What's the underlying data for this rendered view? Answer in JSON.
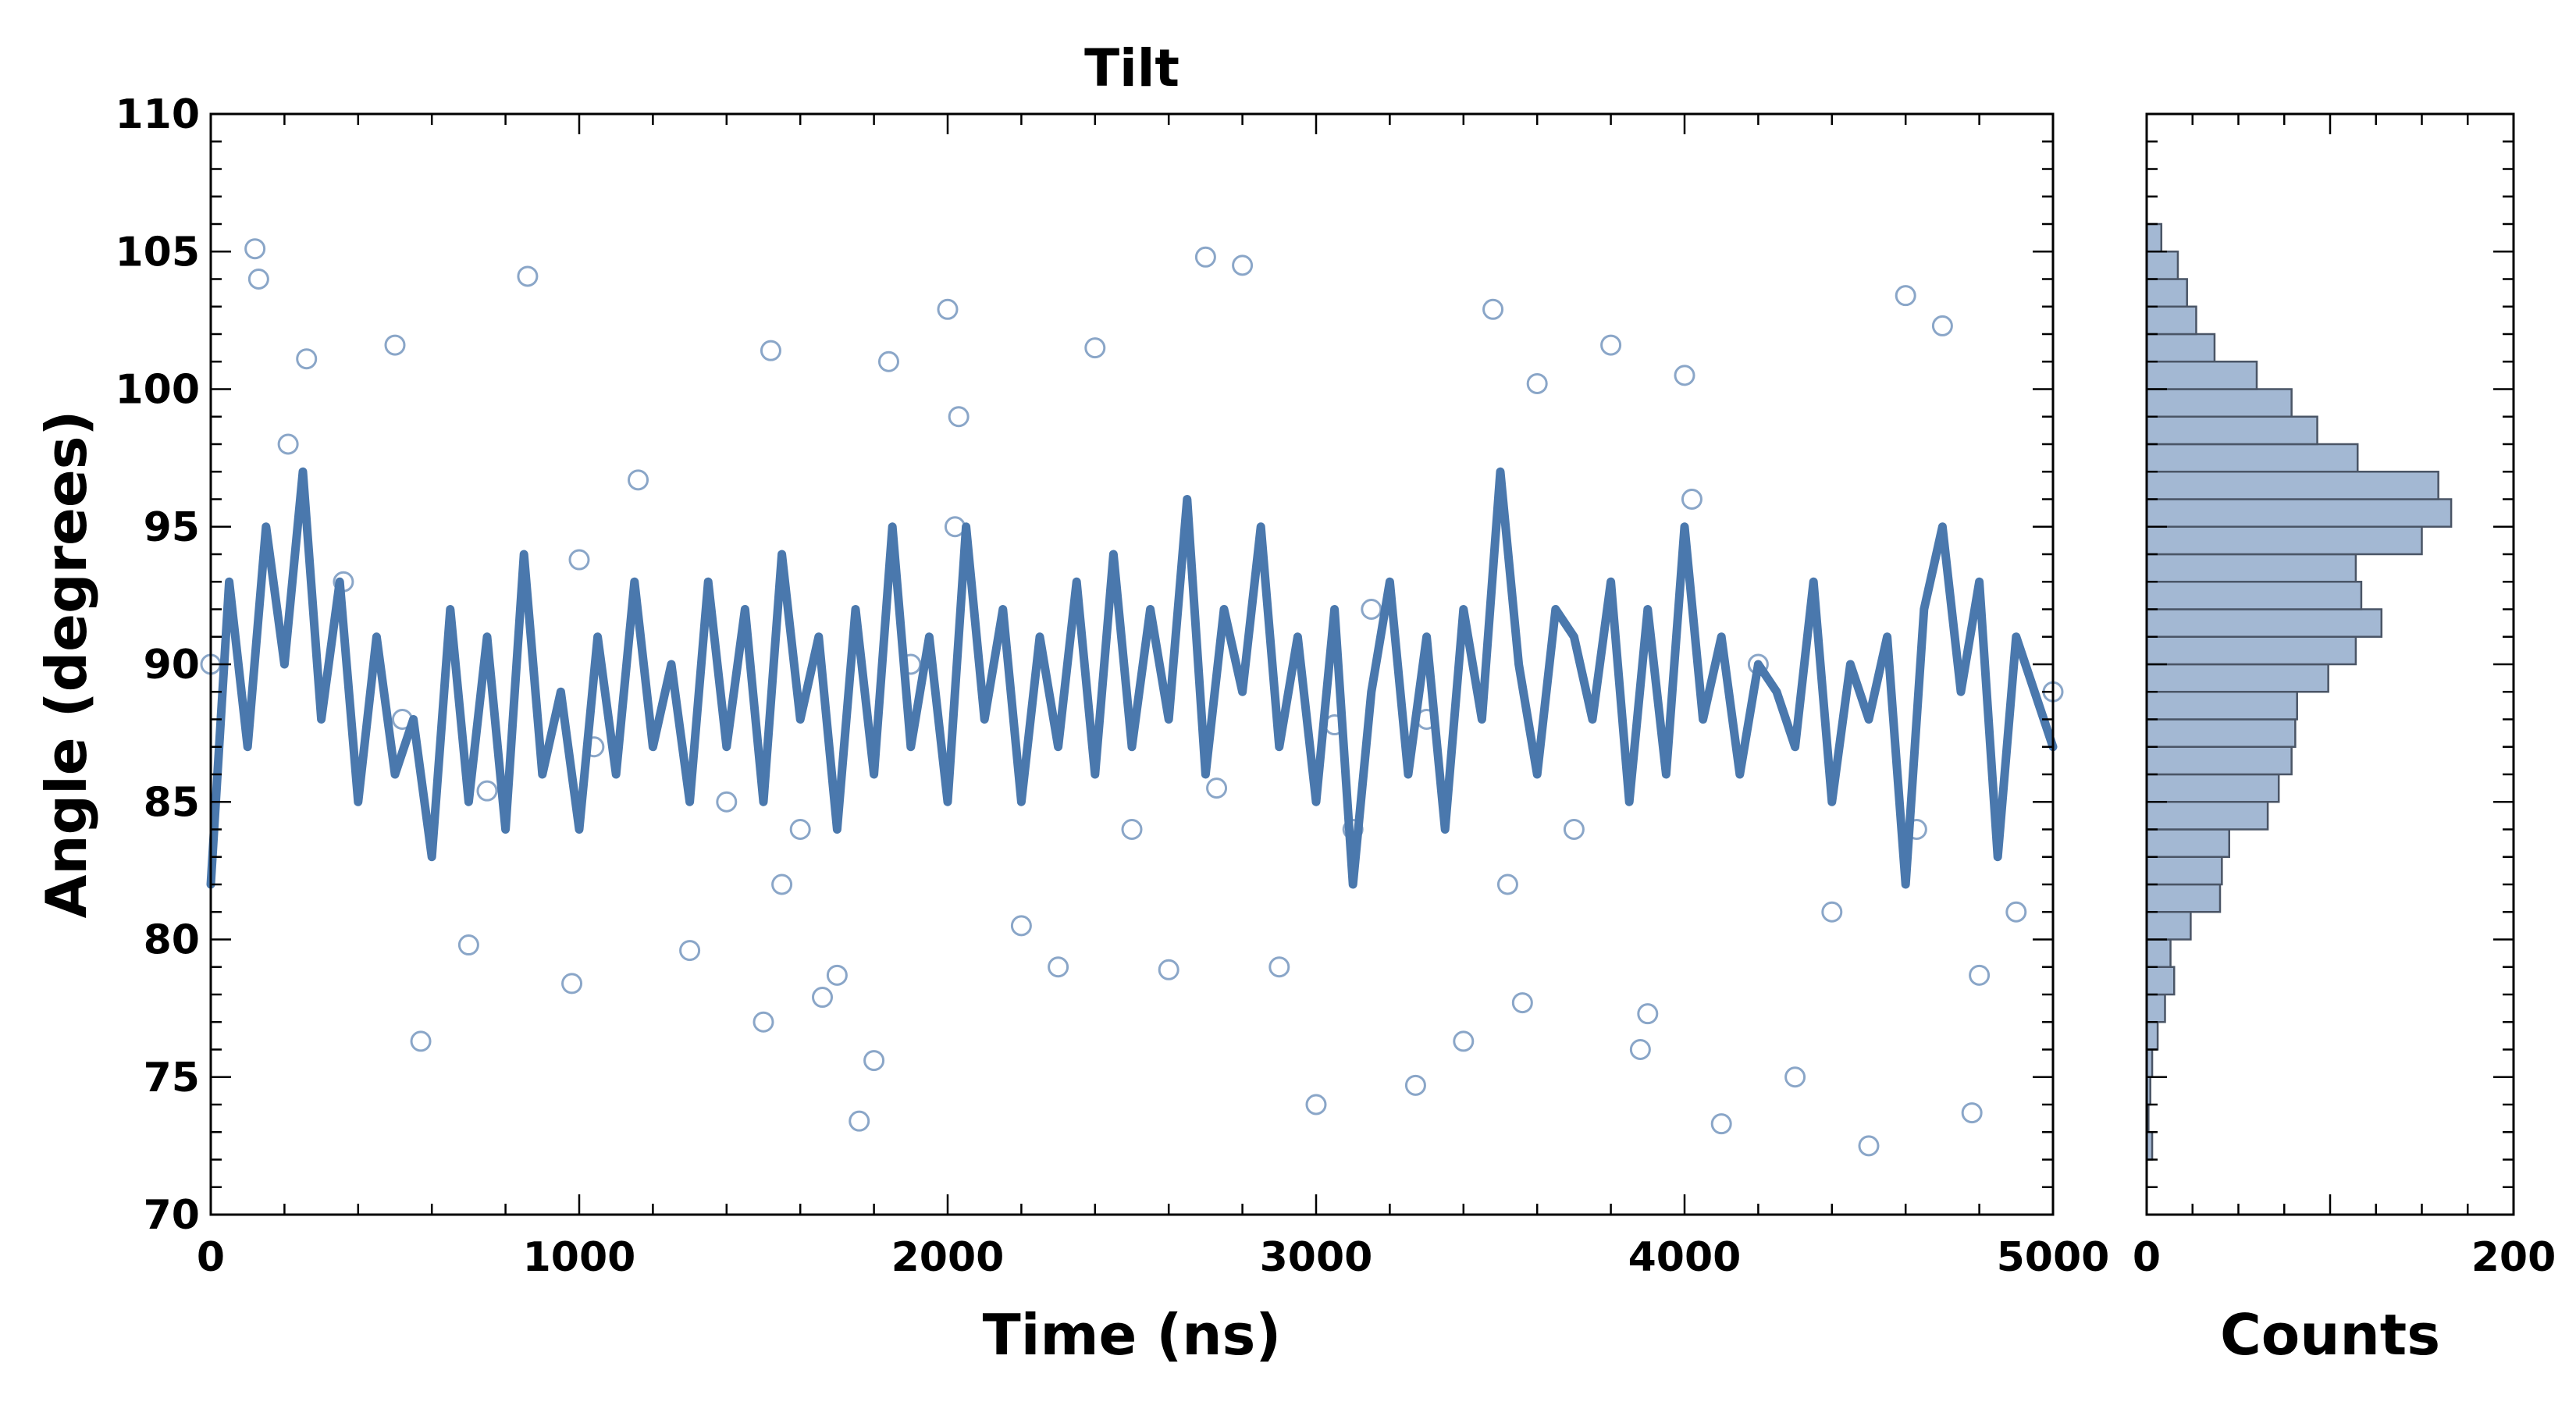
{
  "chart_data": [
    {
      "type": "scatter",
      "title": "Tilt",
      "xlabel": "Time (ns)",
      "ylabel": "Angle (degrees)",
      "xlim": [
        0,
        5000
      ],
      "ylim": [
        70,
        110
      ],
      "xticks": [
        "0",
        "1000",
        "2000",
        "3000",
        "4000",
        "5000"
      ],
      "yticks": [
        "70",
        "75",
        "80",
        "85",
        "90",
        "95",
        "100",
        "105",
        "110"
      ],
      "grid": false,
      "legend": "none",
      "scatter_style": "open-circle",
      "line_style": "solid-thick",
      "series_color": "#4a78ad",
      "scatter_color": "#8aa6c8",
      "scatter_sample": {
        "x": [
          0,
          120,
          130,
          210,
          260,
          360,
          500,
          520,
          570,
          700,
          750,
          860,
          980,
          1000,
          1040,
          1160,
          1300,
          1400,
          1500,
          1520,
          1550,
          1600,
          1660,
          1700,
          1760,
          1800,
          1840,
          1900,
          2000,
          2020,
          2030,
          2200,
          2300,
          2400,
          2500,
          2600,
          2700,
          2730,
          2800,
          2900,
          3000,
          3050,
          3100,
          3150,
          3270,
          3300,
          3400,
          3480,
          3520,
          3560,
          3600,
          3700,
          3800,
          3880,
          3900,
          4000,
          4020,
          4100,
          4200,
          4300,
          4400,
          4500,
          4600,
          4630,
          4700,
          4780,
          4800,
          4900,
          5000
        ],
        "y": [
          90,
          105.1,
          104,
          98,
          101.1,
          93,
          101.6,
          88,
          76.3,
          79.8,
          85.4,
          104.1,
          78.4,
          93.8,
          87,
          96.7,
          79.6,
          85,
          77,
          101.4,
          82,
          84,
          77.9,
          78.7,
          73.4,
          75.6,
          101,
          90,
          102.9,
          95,
          99,
          80.5,
          79,
          101.5,
          84,
          78.9,
          104.8,
          85.5,
          104.5,
          79,
          74,
          87.8,
          84,
          92,
          74.7,
          88,
          76.3,
          102.9,
          82,
          77.7,
          100.2,
          84,
          101.6,
          76,
          77.3,
          100.5,
          96,
          73.3,
          90,
          75,
          81,
          72.5,
          103.4,
          84,
          102.3,
          73.7,
          78.7,
          81,
          89
        ]
      },
      "line_series": {
        "x": [
          0,
          50,
          100,
          150,
          200,
          250,
          300,
          350,
          400,
          450,
          500,
          550,
          600,
          650,
          700,
          750,
          800,
          850,
          900,
          950,
          1000,
          1050,
          1100,
          1150,
          1200,
          1250,
          1300,
          1350,
          1400,
          1450,
          1500,
          1550,
          1600,
          1650,
          1700,
          1750,
          1800,
          1850,
          1900,
          1950,
          2000,
          2050,
          2100,
          2150,
          2200,
          2250,
          2300,
          2350,
          2400,
          2450,
          2500,
          2550,
          2600,
          2650,
          2700,
          2750,
          2800,
          2850,
          2900,
          2950,
          3000,
          3050,
          3100,
          3150,
          3200,
          3250,
          3300,
          3350,
          3400,
          3450,
          3500,
          3550,
          3600,
          3650,
          3700,
          3750,
          3800,
          3850,
          3900,
          3950,
          4000,
          4050,
          4100,
          4150,
          4200,
          4250,
          4300,
          4350,
          4400,
          4450,
          4500,
          4550,
          4600,
          4650,
          4700,
          4750,
          4800,
          4850,
          4900,
          4950,
          5000
        ],
        "y": [
          82,
          93,
          87,
          95,
          90,
          97,
          88,
          93,
          85,
          91,
          86,
          88,
          83,
          92,
          85,
          91,
          84,
          94,
          86,
          89,
          84,
          91,
          86,
          93,
          87,
          90,
          85,
          93,
          87,
          92,
          85,
          94,
          88,
          91,
          84,
          92,
          86,
          95,
          87,
          91,
          85,
          95,
          88,
          92,
          85,
          91,
          87,
          93,
          86,
          94,
          87,
          92,
          88,
          96,
          86,
          92,
          89,
          95,
          87,
          91,
          85,
          92,
          82,
          89,
          93,
          86,
          91,
          84,
          92,
          88,
          97,
          90,
          86,
          92,
          91,
          88,
          93,
          85,
          92,
          86,
          95,
          88,
          91,
          86,
          90,
          89,
          87,
          93,
          85,
          90,
          88,
          91,
          82,
          92,
          95,
          89,
          93,
          83,
          91,
          89,
          87
        ]
      }
    },
    {
      "type": "bar",
      "orientation": "horizontal",
      "xlabel": "Counts",
      "ylabel": "",
      "xlim": [
        0,
        200
      ],
      "ylim": [
        70,
        110
      ],
      "xticks": [
        "0",
        "200"
      ],
      "grid": false,
      "bar_color": "#a3b8d3",
      "bar_edge_color": "#4a5566",
      "bin_width": 1,
      "bin_start": [
        72,
        73,
        74,
        75,
        76,
        77,
        78,
        79,
        80,
        81,
        82,
        83,
        84,
        85,
        86,
        87,
        88,
        89,
        90,
        91,
        92,
        93,
        94,
        95,
        96,
        97,
        98,
        99,
        100,
        101,
        102,
        103,
        104,
        105
      ],
      "values": [
        3,
        1,
        2,
        3,
        6,
        10,
        15,
        13,
        24,
        40,
        41,
        45,
        66,
        72,
        79,
        81,
        82,
        99,
        114,
        128,
        117,
        114,
        150,
        166,
        159,
        115,
        93,
        79,
        60,
        37,
        27,
        22,
        17,
        8
      ]
    }
  ]
}
